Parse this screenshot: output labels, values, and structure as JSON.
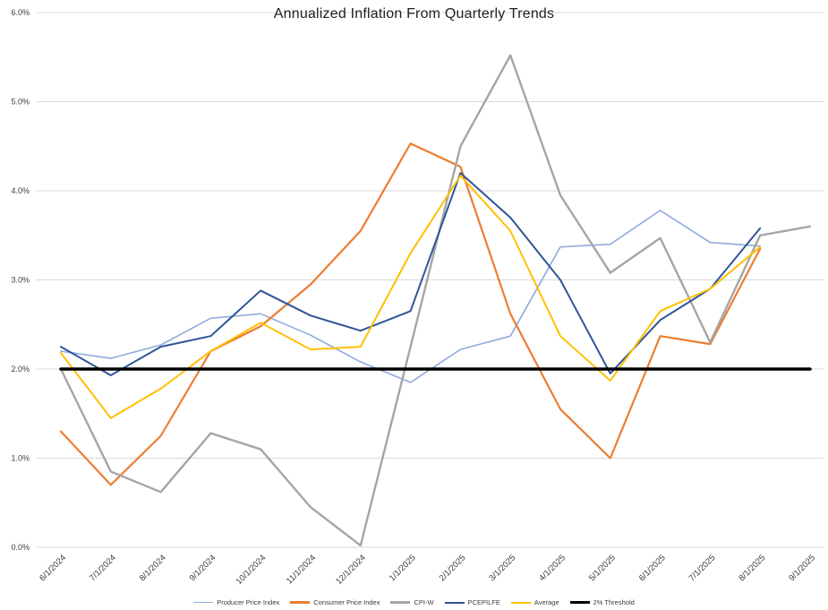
{
  "chart_data": {
    "type": "line",
    "title": "Annualized Inflation From Quarterly Trends",
    "categories": [
      "6/1/2024",
      "7/1/2024",
      "8/1/2024",
      "9/1/2024",
      "10/1/2024",
      "11/1/2024",
      "12/1/2024",
      "1/1/2025",
      "2/1/2025",
      "3/1/2025",
      "4/1/2025",
      "5/1/2025",
      "6/1/2025",
      "7/1/2025",
      "8/1/2025",
      "9/1/2025"
    ],
    "xlabel": "",
    "ylabel": "",
    "ylim": [
      0,
      6
    ],
    "ytick_values": [
      0,
      1,
      2,
      3,
      4,
      5,
      6
    ],
    "ytick_labels": [
      "0.0%",
      "1.0%",
      "2.0%",
      "3.0%",
      "4.0%",
      "5.0%",
      "6.0%"
    ],
    "grid": true,
    "legend_position": "bottom",
    "series": [
      {
        "name": "Producer Price Index",
        "color": "#8FAADC",
        "width": 1.6,
        "values": [
          2.2,
          2.12,
          2.27,
          2.57,
          2.62,
          2.38,
          2.08,
          1.85,
          2.22,
          2.37,
          3.37,
          3.4,
          3.78,
          3.42,
          3.38,
          null
        ]
      },
      {
        "name": "Consumer Price Index",
        "color": "#ED7D31",
        "width": 2.2,
        "values": [
          1.3,
          0.7,
          1.25,
          2.2,
          2.48,
          2.95,
          3.55,
          4.53,
          4.27,
          2.62,
          1.55,
          1.0,
          2.37,
          2.28,
          3.35,
          null
        ]
      },
      {
        "name": "CPI-W",
        "color": "#A5A5A5",
        "width": 2.4,
        "values": [
          2.0,
          0.85,
          0.62,
          1.28,
          1.1,
          0.45,
          0.02,
          2.25,
          4.5,
          5.52,
          3.95,
          3.08,
          3.47,
          2.3,
          3.5,
          3.6
        ]
      },
      {
        "name": "PCEPILFE",
        "color": "#2F5597",
        "width": 2.0,
        "values": [
          2.25,
          1.93,
          2.25,
          2.37,
          2.88,
          2.6,
          2.43,
          2.65,
          4.2,
          3.7,
          3.0,
          1.95,
          2.55,
          2.9,
          3.58,
          null
        ]
      },
      {
        "name": "Average",
        "color": "#FFC000",
        "width": 2.0,
        "values": [
          2.18,
          1.45,
          1.78,
          2.2,
          2.52,
          2.22,
          2.25,
          3.3,
          4.17,
          3.55,
          2.37,
          1.87,
          2.65,
          2.9,
          3.37,
          null
        ]
      },
      {
        "name": "2% Threshold",
        "color": "#000000",
        "width": 3.5,
        "values": [
          2,
          2,
          2,
          2,
          2,
          2,
          2,
          2,
          2,
          2,
          2,
          2,
          2,
          2,
          2,
          2
        ]
      }
    ]
  }
}
